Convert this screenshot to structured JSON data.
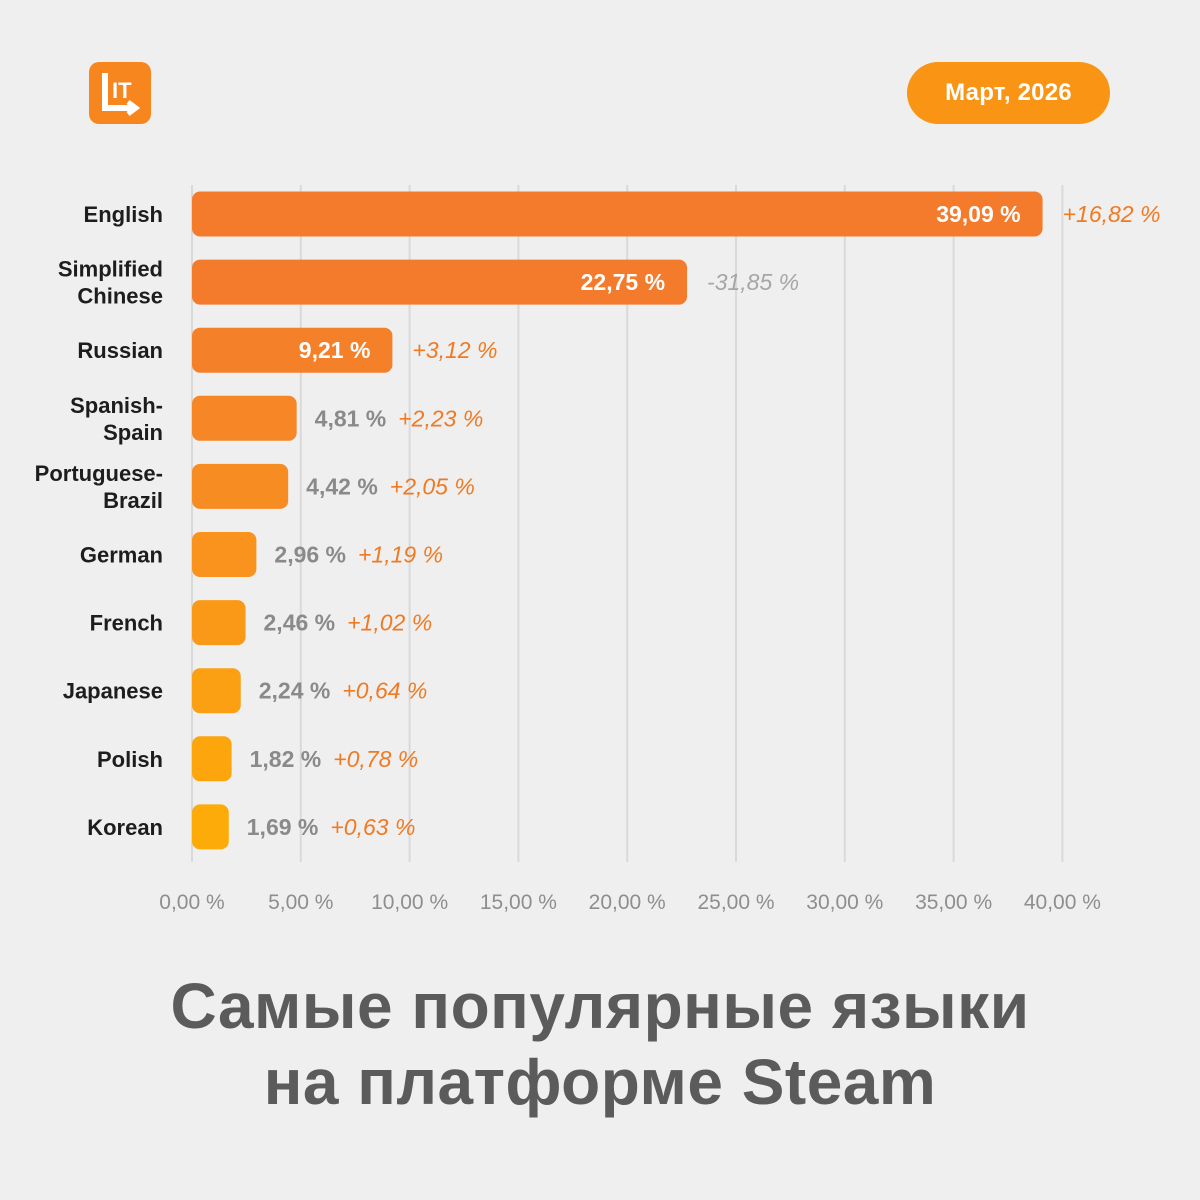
{
  "header": {
    "logo_text": "IT",
    "date": "Март, 2026"
  },
  "title": {
    "line1": "Самые популярные языки",
    "line2": "на платформе Steam"
  },
  "colors": {
    "background": "#efefef",
    "accent": "#f7861f",
    "positive_change": "#f07a22",
    "negative_change": "#a6a6a6",
    "value_outside": "#8a8a8a",
    "title": "#5b5b5b",
    "grid": "#d9d9d9"
  },
  "chart_data": {
    "type": "bar",
    "orientation": "horizontal",
    "categories": [
      "English",
      "Simplified Chinese",
      "Russian",
      "Spanish-Spain",
      "Portuguese-Brazil",
      "German",
      "French",
      "Japanese",
      "Polish",
      "Korean"
    ],
    "category_lines": [
      [
        "English"
      ],
      [
        "Simplified",
        "Chinese"
      ],
      [
        "Russian"
      ],
      [
        "Spanish-",
        "Spain"
      ],
      [
        "Portuguese-",
        "Brazil"
      ],
      [
        "German"
      ],
      [
        "French"
      ],
      [
        "Japanese"
      ],
      [
        "Polish"
      ],
      [
        "Korean"
      ]
    ],
    "values": [
      39.09,
      22.75,
      9.21,
      4.81,
      4.42,
      2.96,
      2.46,
      2.24,
      1.82,
      1.69
    ],
    "value_labels": [
      "39,09 %",
      "22,75 %",
      "9,21 %",
      "4,81 %",
      "4,42 %",
      "2,96 %",
      "2,46 %",
      "2,24 %",
      "1,82 %",
      "1,69 %"
    ],
    "changes": [
      16.82,
      -31.85,
      3.12,
      2.23,
      2.05,
      1.19,
      1.02,
      0.64,
      0.78,
      0.63
    ],
    "change_labels": [
      "+16,82 %",
      "-31,85 %",
      "+3,12 %",
      "+2,23 %",
      "+2,05 %",
      "+1,19 %",
      "+1,02 %",
      "+0,64 %",
      "+0,78 %",
      "+0,63 %"
    ],
    "bar_colors": [
      "#f47b2c",
      "#f47b2c",
      "#f5802a",
      "#f68626",
      "#f78c22",
      "#f9931d",
      "#fa9918",
      "#fb9f13",
      "#fca50d",
      "#fdab08"
    ],
    "xlim": [
      0,
      40
    ],
    "xticks": [
      0,
      5,
      10,
      15,
      20,
      25,
      30,
      35,
      40
    ],
    "xtick_labels": [
      "0,00 %",
      "5,00 %",
      "10,00 %",
      "15,00 %",
      "20,00 %",
      "25,00 %",
      "30,00 %",
      "35,00 %",
      "40,00 %"
    ],
    "grid": true,
    "title": "",
    "xlabel": "",
    "ylabel": ""
  }
}
